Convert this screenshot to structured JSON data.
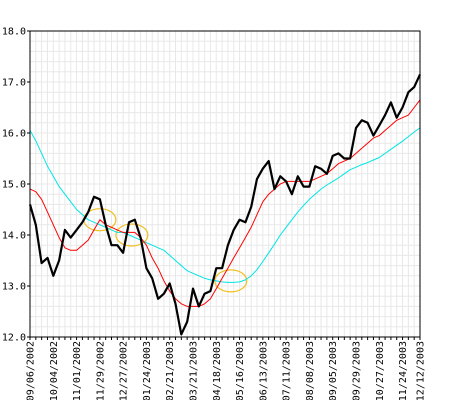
{
  "chart_data": {
    "type": "line",
    "title": "",
    "xlabel": "",
    "ylabel": "",
    "ylim": [
      12.0,
      18.0
    ],
    "y_ticks": [
      "18.0",
      "17.0",
      "16.0",
      "15.0",
      "14.0",
      "13.0",
      "12.0"
    ],
    "y_tick_values": [
      18,
      17,
      16,
      15,
      14,
      13,
      12
    ],
    "x_ticks": [
      "09/06/2002",
      "10/04/2002",
      "11/01/2002",
      "11/29/2002",
      "12/27/2002",
      "01/24/2003",
      "02/21/2003",
      "03/21/2003",
      "04/18/2003",
      "05/16/2003",
      "06/13/2003",
      "07/11/2003",
      "08/08/2003",
      "09/05/2003",
      "09/29/2003",
      "10/27/2003",
      "11/24/2003",
      "12/12/2003"
    ],
    "x_tick_index": [
      0,
      4,
      8,
      12,
      16,
      20,
      24,
      28,
      32,
      36,
      40,
      44,
      48,
      52,
      56,
      60,
      64,
      67
    ],
    "grid": true,
    "legend": "none",
    "series": [
      {
        "color": "#000000",
        "values": [
          14.6,
          14.2,
          13.45,
          13.55,
          13.2,
          13.5,
          14.1,
          13.95,
          14.1,
          14.25,
          14.45,
          14.75,
          14.7,
          14.2,
          13.8,
          13.8,
          13.65,
          14.25,
          14.3,
          13.95,
          13.35,
          13.15,
          12.75,
          12.85,
          13.05,
          12.65,
          12.05,
          12.3,
          12.95,
          12.6,
          12.85,
          12.9,
          13.35,
          13.35,
          13.8,
          14.1,
          14.3,
          14.25,
          14.55,
          15.1,
          15.3,
          15.45,
          14.9,
          15.15,
          15.05,
          14.8,
          15.15,
          14.95,
          14.95,
          15.35,
          15.3,
          15.2,
          15.55,
          15.6,
          15.5,
          15.5,
          16.1,
          16.25,
          16.2,
          15.95,
          16.15,
          16.35,
          16.6,
          16.3,
          16.5,
          16.8,
          16.9,
          17.15
        ]
      },
      {
        "color": "#ff0000",
        "values": [
          14.9,
          14.85,
          14.7,
          14.45,
          14.2,
          13.95,
          13.75,
          13.7,
          13.7,
          13.8,
          13.9,
          14.1,
          14.3,
          14.2,
          14.15,
          14.1,
          14.05,
          14.05,
          14.05,
          13.95,
          13.8,
          13.55,
          13.35,
          13.1,
          12.9,
          12.75,
          12.65,
          12.6,
          12.6,
          12.6,
          12.65,
          12.75,
          12.95,
          13.15,
          13.35,
          13.55,
          13.75,
          13.95,
          14.15,
          14.4,
          14.65,
          14.8,
          14.9,
          15.0,
          15.05,
          15.05,
          15.05,
          15.05,
          15.05,
          15.1,
          15.15,
          15.2,
          15.3,
          15.4,
          15.45,
          15.5,
          15.6,
          15.7,
          15.8,
          15.9,
          15.95,
          16.05,
          16.15,
          16.25,
          16.3,
          16.35,
          16.5,
          16.65
        ]
      },
      {
        "color": "#00e5e5",
        "values": [
          16.05,
          15.85,
          15.6,
          15.35,
          15.15,
          14.95,
          14.8,
          14.65,
          14.5,
          14.4,
          14.3,
          14.25,
          14.2,
          14.15,
          14.1,
          14.05,
          14.05,
          14.0,
          13.95,
          13.9,
          13.85,
          13.8,
          13.75,
          13.7,
          13.6,
          13.5,
          13.4,
          13.3,
          13.25,
          13.2,
          13.15,
          13.12,
          13.1,
          13.08,
          13.07,
          13.07,
          13.08,
          13.12,
          13.2,
          13.32,
          13.48,
          13.65,
          13.82,
          14.0,
          14.15,
          14.3,
          14.45,
          14.58,
          14.7,
          14.8,
          14.9,
          14.98,
          15.05,
          15.12,
          15.2,
          15.28,
          15.33,
          15.38,
          15.42,
          15.47,
          15.52,
          15.6,
          15.68,
          15.76,
          15.84,
          15.93,
          16.02,
          16.1
        ]
      }
    ],
    "annotations": [
      {
        "shape": "ellipse",
        "color": "#f0c020",
        "x_index": 12,
        "y": 14.3
      },
      {
        "shape": "ellipse",
        "color": "#f0c020",
        "x_index": 17.5,
        "y": 14.0
      },
      {
        "shape": "ellipse",
        "color": "#f0c020",
        "x_index": 34.5,
        "y": 13.1
      }
    ]
  }
}
